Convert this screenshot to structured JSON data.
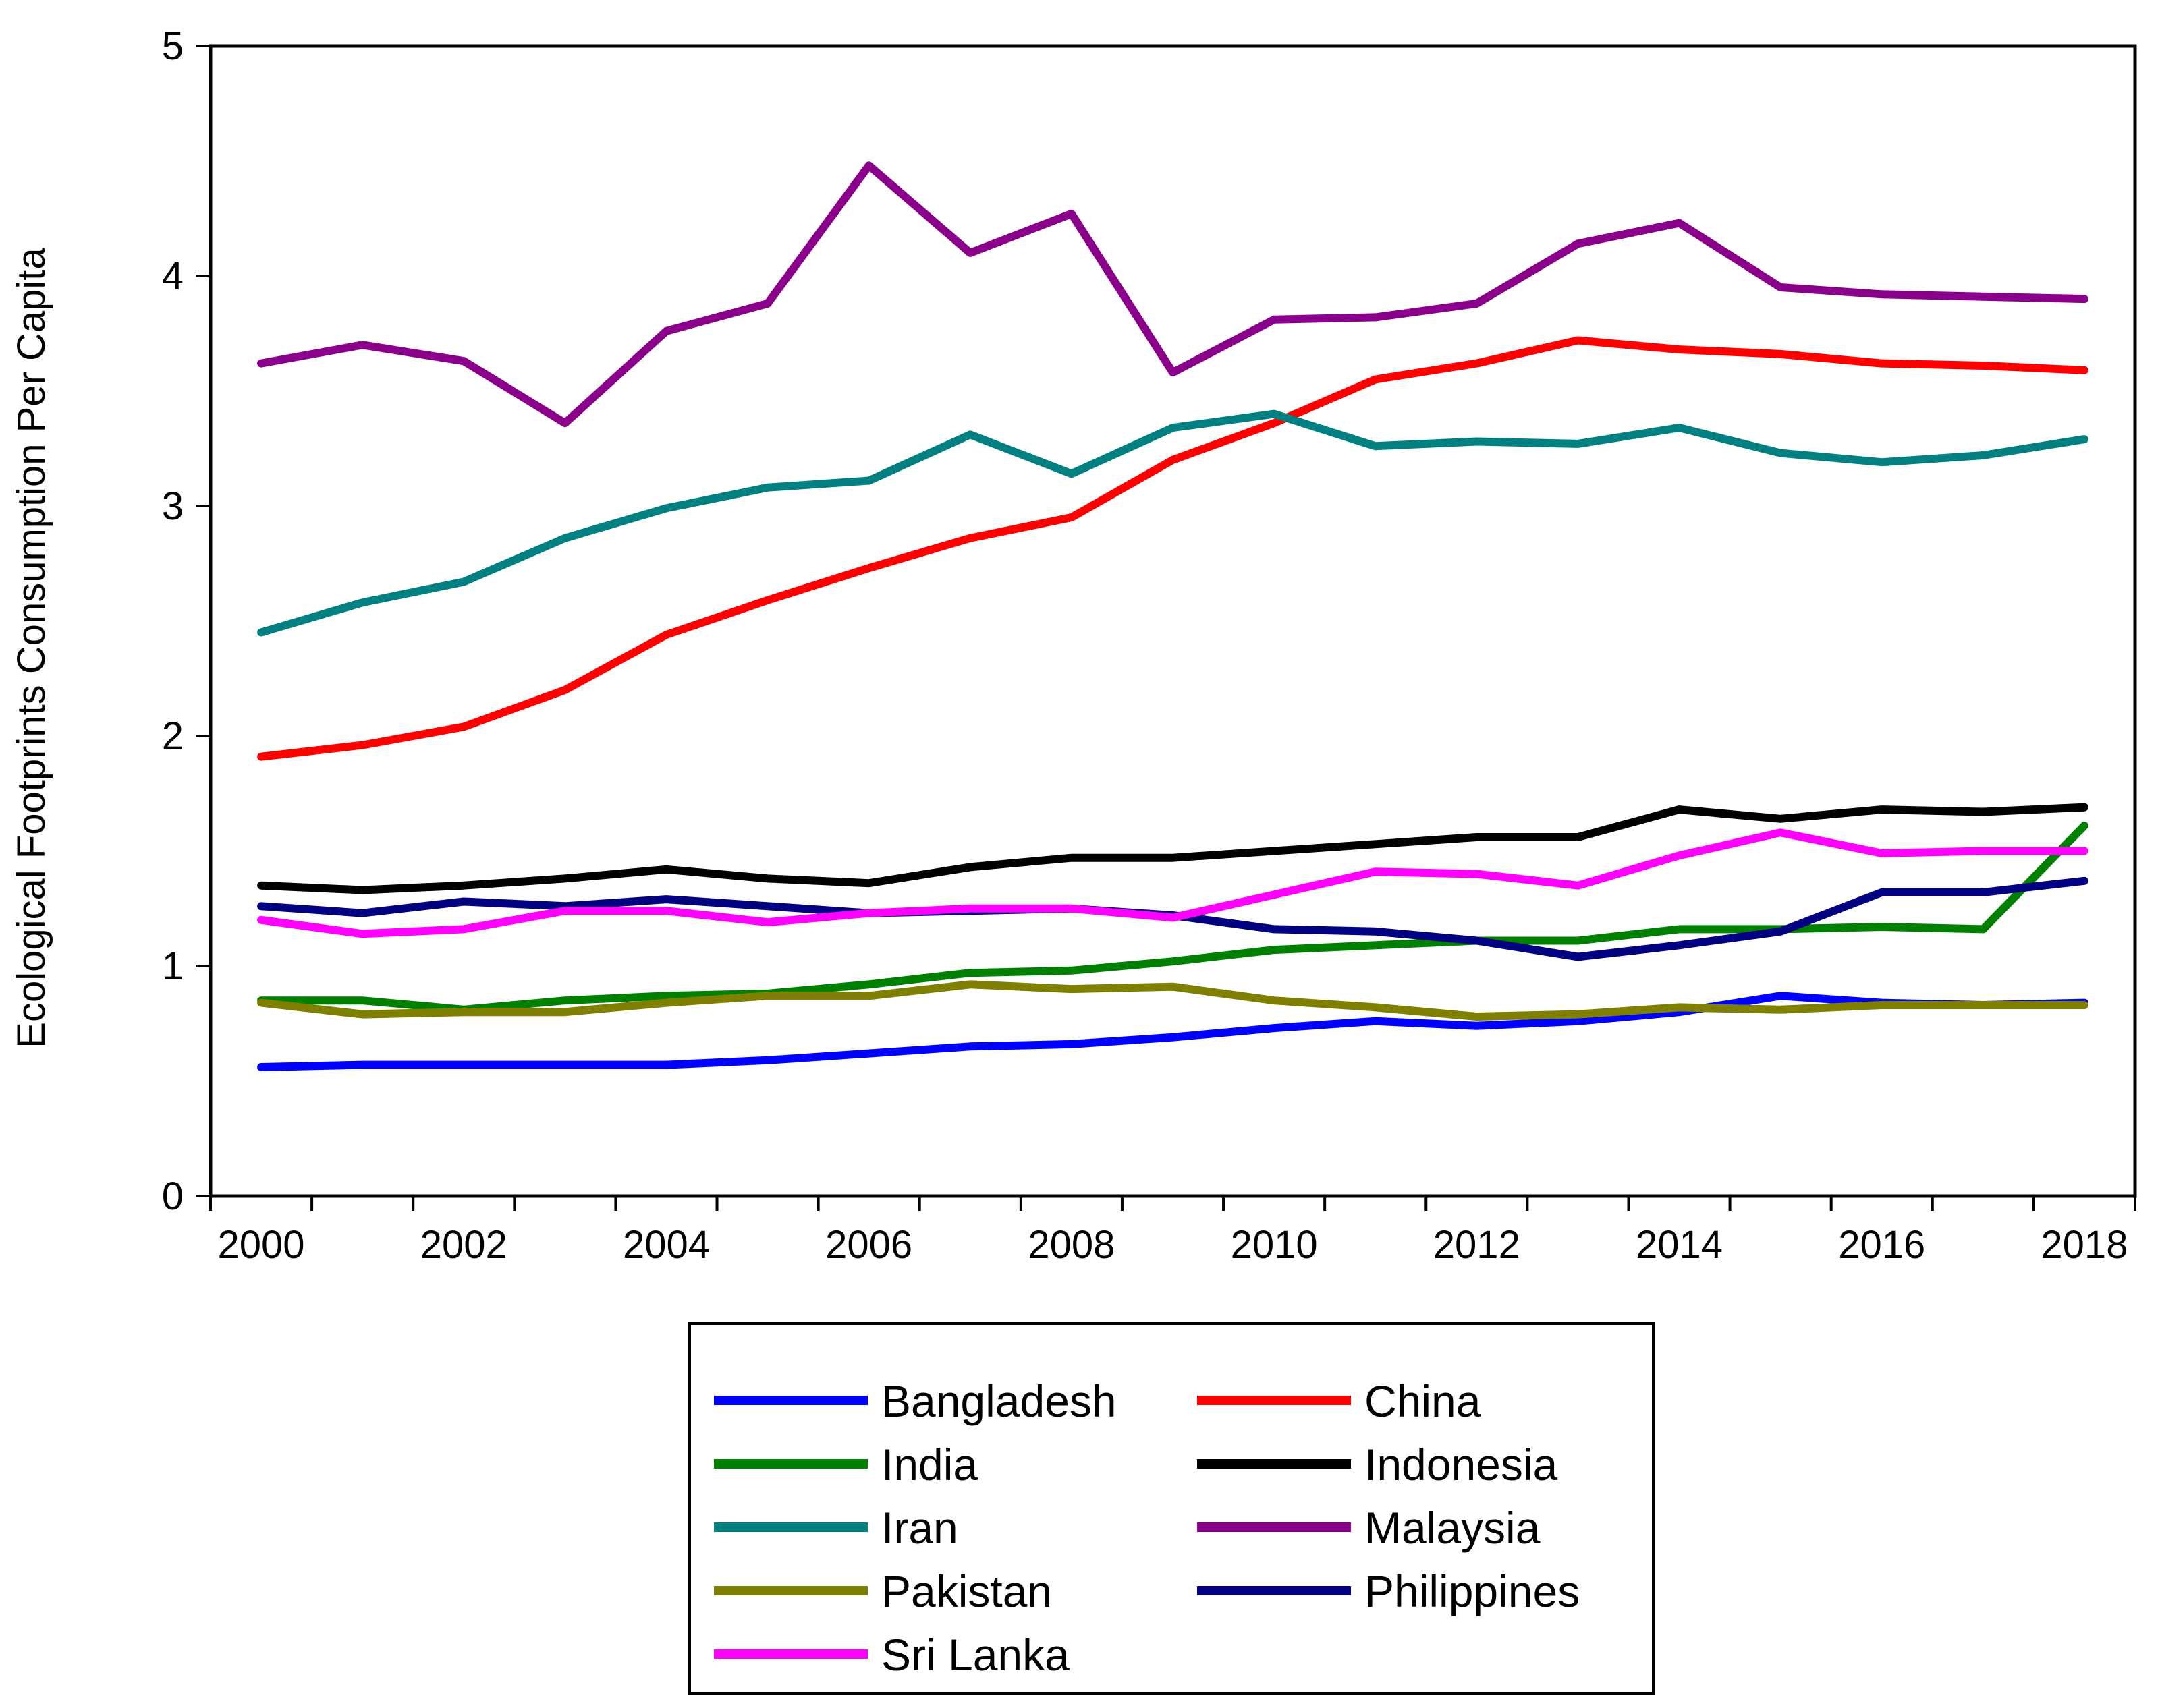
{
  "chart_data": {
    "type": "line",
    "title": "",
    "xlabel": "",
    "ylabel": "Ecological Footprints Consumption Per Capita",
    "xlim": [
      1999.5,
      2018.5
    ],
    "ylim": [
      0,
      5
    ],
    "grid": false,
    "legend_position": "bottom-center",
    "x": [
      2000,
      2001,
      2002,
      2003,
      2004,
      2005,
      2006,
      2007,
      2008,
      2009,
      2010,
      2011,
      2012,
      2013,
      2014,
      2015,
      2016,
      2017,
      2018
    ],
    "x_tick_labels": [
      "2000",
      "2002",
      "2004",
      "2006",
      "2008",
      "2010",
      "2012",
      "2014",
      "2016",
      "2018"
    ],
    "y_tick_labels": [
      "0",
      "1",
      "2",
      "3",
      "4",
      "5"
    ],
    "series": [
      {
        "name": "Bangladesh",
        "color": "#0000FF",
        "values": [
          0.56,
          0.57,
          0.57,
          0.57,
          0.57,
          0.59,
          0.62,
          0.65,
          0.66,
          0.69,
          0.73,
          0.76,
          0.74,
          0.76,
          0.8,
          0.87,
          0.84,
          0.83,
          0.84
        ]
      },
      {
        "name": "China",
        "color": "#FF0000",
        "values": [
          1.91,
          1.96,
          2.04,
          2.2,
          2.44,
          2.59,
          2.73,
          2.86,
          2.95,
          3.2,
          3.36,
          3.55,
          3.62,
          3.72,
          3.68,
          3.66,
          3.62,
          3.61,
          3.59
        ]
      },
      {
        "name": "India",
        "color": "#008000",
        "values": [
          0.85,
          0.85,
          0.81,
          0.85,
          0.87,
          0.88,
          0.92,
          0.97,
          0.98,
          1.02,
          1.07,
          1.09,
          1.11,
          1.11,
          1.16,
          1.16,
          1.17,
          1.16,
          1.61
        ]
      },
      {
        "name": "Indonesia",
        "color": "#000000",
        "values": [
          1.35,
          1.33,
          1.35,
          1.38,
          1.42,
          1.38,
          1.36,
          1.43,
          1.47,
          1.47,
          1.5,
          1.53,
          1.56,
          1.56,
          1.68,
          1.64,
          1.68,
          1.67,
          1.69
        ]
      },
      {
        "name": "Iran",
        "color": "#008080",
        "values": [
          2.45,
          2.58,
          2.67,
          2.86,
          2.99,
          3.08,
          3.11,
          3.31,
          3.14,
          3.34,
          3.4,
          3.26,
          3.28,
          3.27,
          3.34,
          3.23,
          3.19,
          3.22,
          3.29
        ]
      },
      {
        "name": "Malaysia",
        "color": "#8B008B",
        "values": [
          3.62,
          3.7,
          3.63,
          3.36,
          3.76,
          3.88,
          4.48,
          4.1,
          4.27,
          3.58,
          3.81,
          3.82,
          3.88,
          4.14,
          4.23,
          3.95,
          3.92,
          3.91,
          3.9
        ]
      },
      {
        "name": "Pakistan",
        "color": "#808000",
        "values": [
          0.84,
          0.79,
          0.8,
          0.8,
          0.84,
          0.87,
          0.87,
          0.92,
          0.9,
          0.91,
          0.85,
          0.82,
          0.78,
          0.79,
          0.82,
          0.81,
          0.83,
          0.83,
          0.83
        ]
      },
      {
        "name": "Philippines",
        "color": "#000080",
        "values": [
          1.26,
          1.23,
          1.28,
          1.26,
          1.29,
          1.26,
          1.23,
          1.24,
          1.25,
          1.22,
          1.16,
          1.15,
          1.11,
          1.04,
          1.09,
          1.15,
          1.32,
          1.32,
          1.37
        ]
      },
      {
        "name": "Sri Lanka",
        "color": "#FF00FF",
        "values": [
          1.2,
          1.14,
          1.16,
          1.24,
          1.24,
          1.19,
          1.23,
          1.25,
          1.25,
          1.21,
          1.31,
          1.41,
          1.4,
          1.35,
          1.48,
          1.58,
          1.49,
          1.5,
          1.5
        ]
      }
    ]
  }
}
